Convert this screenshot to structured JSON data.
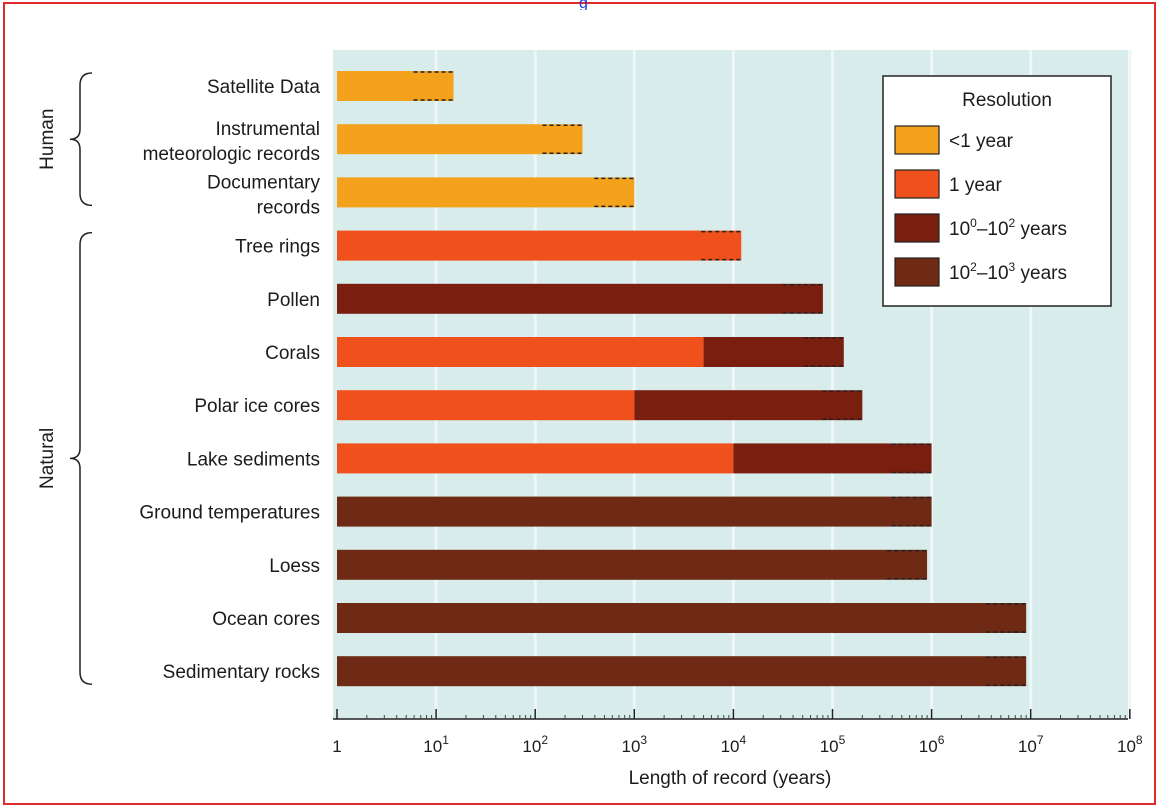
{
  "header": {
    "link_text": "g"
  },
  "colors": {
    "lt1": "#f4a11c",
    "y1": "#f0501b",
    "y0to2": "#7a1f10",
    "y2to3": "#6e2a14",
    "plot_bg": "#d8ecec"
  },
  "chart_data": {
    "type": "bar",
    "orientation": "horizontal",
    "xscale": "log",
    "xlim": [
      1,
      100000000
    ],
    "xlabel": "Length of record (years)",
    "ylabel": "",
    "title": "",
    "xticks": [
      {
        "value": 1,
        "base": "1",
        "exp": ""
      },
      {
        "value": 10,
        "base": "10",
        "exp": "1"
      },
      {
        "value": 100,
        "base": "10",
        "exp": "2"
      },
      {
        "value": 1000,
        "base": "10",
        "exp": "3"
      },
      {
        "value": 10000,
        "base": "10",
        "exp": "4"
      },
      {
        "value": 100000,
        "base": "10",
        "exp": "5"
      },
      {
        "value": 1000000,
        "base": "10",
        "exp": "6"
      },
      {
        "value": 10000000,
        "base": "10",
        "exp": "7"
      },
      {
        "value": 100000000,
        "base": "10",
        "exp": "8"
      }
    ],
    "groups": [
      {
        "label": "Human",
        "from": 0,
        "to": 2
      },
      {
        "label": "Natural",
        "from": 3,
        "to": 11
      }
    ],
    "legend": {
      "title": "Resolution",
      "position": "top-right",
      "items": [
        {
          "key": "lt1",
          "label": "<1 year"
        },
        {
          "key": "y1",
          "label": "1 year"
        },
        {
          "key": "y0to2",
          "base1": "10",
          "exp1": "0",
          "mid": "–",
          "base2": "10",
          "exp2": "2",
          "tail": " years"
        },
        {
          "key": "y2to3",
          "base1": "10",
          "exp1": "2",
          "mid": "–",
          "base2": "10",
          "exp2": "3",
          "tail": " years"
        }
      ]
    },
    "categories": [
      "Satellite Data",
      [
        "Instrumental",
        "meteorologic records"
      ],
      [
        "Documentary",
        "records"
      ],
      "Tree rings",
      "Pollen",
      "Corals",
      "Polar ice cores",
      "Lake sediments",
      "Ground temperatures",
      "Loess",
      "Ocean cores",
      "Sedimentary rocks"
    ],
    "records": [
      {
        "length": 15,
        "segments": [
          {
            "from": 1,
            "to": 15,
            "res": "lt1"
          }
        ]
      },
      {
        "length": 300,
        "segments": [
          {
            "from": 1,
            "to": 300,
            "res": "lt1"
          }
        ]
      },
      {
        "length": 1000,
        "segments": [
          {
            "from": 1,
            "to": 1000,
            "res": "lt1"
          }
        ]
      },
      {
        "length": 12000,
        "segments": [
          {
            "from": 1,
            "to": 12000,
            "res": "y1"
          }
        ]
      },
      {
        "length": 80000,
        "segments": [
          {
            "from": 1,
            "to": 80000,
            "res": "y0to2"
          }
        ]
      },
      {
        "length": 130000,
        "segments": [
          {
            "from": 1,
            "to": 5000,
            "res": "y1"
          },
          {
            "from": 5000,
            "to": 130000,
            "res": "y0to2"
          }
        ]
      },
      {
        "length": 200000,
        "segments": [
          {
            "from": 1,
            "to": 1000,
            "res": "y1"
          },
          {
            "from": 1000,
            "to": 200000,
            "res": "y0to2"
          }
        ]
      },
      {
        "length": 1000000,
        "segments": [
          {
            "from": 1,
            "to": 10000,
            "res": "y1"
          },
          {
            "from": 10000,
            "to": 1000000,
            "res": "y0to2"
          }
        ]
      },
      {
        "length": 1000000,
        "segments": [
          {
            "from": 1,
            "to": 1000000,
            "res": "y2to3"
          }
        ]
      },
      {
        "length": 900000,
        "segments": [
          {
            "from": 1,
            "to": 900000,
            "res": "y2to3"
          }
        ]
      },
      {
        "length": 9000000,
        "segments": [
          {
            "from": 1,
            "to": 9000000,
            "res": "y2to3"
          }
        ]
      },
      {
        "length": 9000000,
        "segments": [
          {
            "from": 1,
            "to": 9000000,
            "res": "y2to3"
          }
        ]
      }
    ]
  }
}
